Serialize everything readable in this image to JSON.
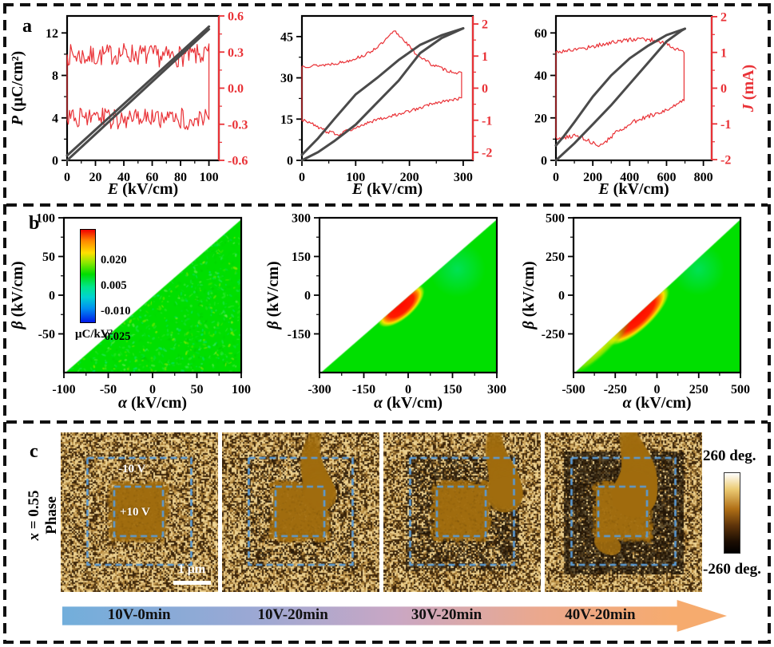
{
  "panels": {
    "a": {
      "label": "a"
    },
    "b": {
      "label": "b"
    },
    "c": {
      "label": "c"
    }
  },
  "colors": {
    "curve_p": "#4a4a4a",
    "curve_j": "#e93136",
    "axis": "#000000",
    "forc_green": "#00df00",
    "pfm_blue_dash": "#5b9bd5",
    "pfm_base": "#b4873c",
    "pfm_dark": "#3a2309",
    "pfm_light": "#eed392",
    "pfm_smooth": "#a06c0e",
    "pfm_ring": "#170e04"
  },
  "chart_data": [
    {
      "type": "line",
      "panel": "a",
      "index": 0,
      "xlabel_var": "E",
      "xlabel_unit": " (kV/cm)",
      "ylabel_left_var": "P",
      "ylabel_left_unit": " (μC/cm²)",
      "ylabel_right_var": "",
      "ylabel_right_unit": "",
      "xlim": [
        0,
        107
      ],
      "xticks": [
        [
          0,
          "0"
        ],
        [
          20,
          "20"
        ],
        [
          40,
          "40"
        ],
        [
          60,
          "60"
        ],
        [
          80,
          "80"
        ],
        [
          100,
          "100"
        ]
      ],
      "ylim_left": [
        0,
        13.6
      ],
      "yticks_left": [
        [
          0,
          "0"
        ],
        [
          4,
          "4"
        ],
        [
          8,
          "8"
        ],
        [
          12,
          "12"
        ]
      ],
      "ylim_right": [
        -0.6,
        0.6
      ],
      "yticks_right": [
        [
          0.6,
          "0.6"
        ],
        [
          0.3,
          "0.3"
        ],
        [
          0,
          "0.0"
        ],
        [
          -0.3,
          "-0.3"
        ],
        [
          -0.6,
          "-0.6"
        ]
      ],
      "p_branches": [
        [
          [
            0,
            0
          ],
          [
            100,
            12.35
          ]
        ],
        [
          [
            100,
            12.6
          ],
          [
            0,
            0.45
          ]
        ]
      ],
      "j_loop": [
        [
          0,
          0.28
        ],
        [
          15,
          0.26
        ],
        [
          40,
          0.29
        ],
        [
          70,
          0.26
        ],
        [
          100,
          0.28
        ],
        [
          100,
          -0.26
        ],
        [
          70,
          -0.25
        ],
        [
          40,
          -0.27
        ],
        [
          15,
          -0.24
        ],
        [
          0,
          -0.26
        ],
        [
          0,
          0.28
        ]
      ],
      "j_noise": 0.09,
      "seed": 7
    },
    {
      "type": "line",
      "panel": "a",
      "index": 1,
      "xlabel_var": "E",
      "xlabel_unit": " (kV/cm)",
      "ylabel_left_var": "",
      "ylabel_left_unit": "",
      "ylabel_right_var": "",
      "ylabel_right_unit": "",
      "xlim": [
        0,
        318
      ],
      "xticks": [
        [
          0,
          "0"
        ],
        [
          100,
          "100"
        ],
        [
          200,
          "200"
        ],
        [
          300,
          "300"
        ]
      ],
      "ylim_left": [
        0,
        52.5
      ],
      "yticks_left": [
        [
          0,
          "0"
        ],
        [
          15,
          "15"
        ],
        [
          30,
          "30"
        ],
        [
          45,
          "45"
        ]
      ],
      "ylim_right": [
        -2.25,
        2.25
      ],
      "yticks_right": [
        [
          2,
          "2"
        ],
        [
          1,
          "1"
        ],
        [
          0,
          "0"
        ],
        [
          -1,
          "-1"
        ],
        [
          -2,
          "-2"
        ]
      ],
      "p_branches": [
        [
          [
            0,
            0
          ],
          [
            30,
            3
          ],
          [
            60,
            7
          ],
          [
            100,
            13
          ],
          [
            140,
            21
          ],
          [
            180,
            29
          ],
          [
            220,
            39
          ],
          [
            260,
            44.5
          ],
          [
            300,
            48
          ]
        ],
        [
          [
            300,
            48
          ],
          [
            260,
            45.5
          ],
          [
            220,
            42
          ],
          [
            180,
            36.5
          ],
          [
            140,
            30
          ],
          [
            100,
            24
          ],
          [
            60,
            15
          ],
          [
            30,
            8
          ],
          [
            0,
            2
          ]
        ]
      ],
      "j_loop": [
        [
          0,
          0.68
        ],
        [
          40,
          0.72
        ],
        [
          80,
          0.82
        ],
        [
          120,
          1.05
        ],
        [
          150,
          1.4
        ],
        [
          172,
          1.78
        ],
        [
          190,
          1.5
        ],
        [
          210,
          1.1
        ],
        [
          240,
          0.75
        ],
        [
          270,
          0.55
        ],
        [
          297,
          0.45
        ],
        [
          297,
          -0.3
        ],
        [
          270,
          -0.4
        ],
        [
          240,
          -0.5
        ],
        [
          200,
          -0.72
        ],
        [
          160,
          -0.9
        ],
        [
          120,
          -1.08
        ],
        [
          90,
          -1.3
        ],
        [
          68,
          -1.44
        ],
        [
          45,
          -1.35
        ],
        [
          20,
          -1.12
        ],
        [
          0,
          -0.98
        ],
        [
          0,
          0.68
        ]
      ],
      "j_noise": 0.05,
      "seed": 13
    },
    {
      "type": "line",
      "panel": "a",
      "index": 2,
      "xlabel_var": "E",
      "xlabel_unit": " (kV/cm)",
      "ylabel_left_var": "",
      "ylabel_left_unit": "",
      "ylabel_right_var": "J",
      "ylabel_right_unit": " (mA)",
      "xlim": [
        0,
        845
      ],
      "xticks": [
        [
          0,
          "0"
        ],
        [
          200,
          "200"
        ],
        [
          400,
          "400"
        ],
        [
          600,
          "600"
        ],
        [
          800,
          "800"
        ]
      ],
      "ylim_left": [
        0,
        68
      ],
      "yticks_left": [
        [
          0,
          "0"
        ],
        [
          20,
          "20"
        ],
        [
          40,
          "40"
        ],
        [
          60,
          "60"
        ]
      ],
      "ylim_right": [
        -2.02,
        2.02
      ],
      "yticks_right": [
        [
          2,
          "2"
        ],
        [
          1,
          "1"
        ],
        [
          0,
          "0"
        ],
        [
          -1,
          "-1"
        ],
        [
          -2,
          "-2"
        ]
      ],
      "p_branches": [
        [
          [
            0,
            0
          ],
          [
            100,
            8
          ],
          [
            200,
            17
          ],
          [
            300,
            26
          ],
          [
            400,
            36
          ],
          [
            500,
            46
          ],
          [
            600,
            56
          ],
          [
            680,
            61
          ],
          [
            700,
            62
          ]
        ],
        [
          [
            700,
            62
          ],
          [
            600,
            59
          ],
          [
            500,
            54
          ],
          [
            400,
            48
          ],
          [
            300,
            40
          ],
          [
            200,
            30
          ],
          [
            100,
            18
          ],
          [
            40,
            11
          ],
          [
            0,
            7
          ]
        ]
      ],
      "j_loop": [
        [
          0,
          1.02
        ],
        [
          60,
          1.05
        ],
        [
          150,
          1.12
        ],
        [
          250,
          1.22
        ],
        [
          350,
          1.32
        ],
        [
          450,
          1.38
        ],
        [
          520,
          1.35
        ],
        [
          580,
          1.28
        ],
        [
          640,
          1.12
        ],
        [
          695,
          1.02
        ],
        [
          695,
          -0.35
        ],
        [
          640,
          -0.5
        ],
        [
          560,
          -0.68
        ],
        [
          480,
          -0.82
        ],
        [
          400,
          -1.0
        ],
        [
          330,
          -1.22
        ],
        [
          270,
          -1.5
        ],
        [
          230,
          -1.58
        ],
        [
          190,
          -1.52
        ],
        [
          150,
          -1.4
        ],
        [
          100,
          -1.32
        ],
        [
          60,
          -1.38
        ],
        [
          20,
          -1.42
        ],
        [
          0,
          -1.35
        ],
        [
          0,
          1.02
        ]
      ],
      "j_noise": 0.06,
      "seed": 17
    },
    {
      "type": "heatmap",
      "panel": "b",
      "index": 0,
      "xlabel_var": "α",
      "xlabel_unit": " (kV/cm)",
      "ylabel_var": "β",
      "ylabel_unit": " (kV/cm)",
      "xlim": [
        -100,
        100
      ],
      "xticks": [
        [
          -100,
          "-100"
        ],
        [
          -50,
          "-50"
        ],
        [
          0,
          "0"
        ],
        [
          50,
          "50"
        ],
        [
          100,
          "100"
        ]
      ],
      "ylim": [
        -100,
        100
      ],
      "yticks": [
        [
          100,
          "100"
        ],
        [
          50,
          "50"
        ],
        [
          0,
          "0"
        ],
        [
          -50,
          "-50"
        ]
      ],
      "speckle": true,
      "hotspot": null,
      "tail": false,
      "cyan_spot": null,
      "colorbar": {
        "ticks": [
          "0.020",
          "0.005",
          "-0.010",
          "-0.025"
        ],
        "unit": "μC/kV²"
      },
      "seed": 101
    },
    {
      "type": "heatmap",
      "panel": "b",
      "index": 1,
      "xlabel_var": "α",
      "xlabel_unit": " (kV/cm)",
      "ylabel_var": "β",
      "ylabel_unit": " (kV/cm)",
      "xlim": [
        -300,
        300
      ],
      "xticks": [
        [
          -300,
          "-300"
        ],
        [
          -150,
          "-150"
        ],
        [
          0,
          "0"
        ],
        [
          150,
          "150"
        ],
        [
          300,
          "300"
        ]
      ],
      "ylim": [
        -300,
        300
      ],
      "yticks": [
        [
          300,
          "300"
        ],
        [
          150,
          "150"
        ],
        [
          0,
          "0"
        ],
        [
          -150,
          "-150"
        ]
      ],
      "speckle": false,
      "hotspot": {
        "cx": 0.46,
        "cy": 0.57,
        "len": 0.17,
        "wid": 0.085
      },
      "tail": false,
      "cyan_spot": {
        "x": 0.78,
        "y": 0.33,
        "r": 0.16
      },
      "seed": 103
    },
    {
      "type": "heatmap",
      "panel": "b",
      "index": 2,
      "xlabel_var": "α",
      "xlabel_unit": " (kV/cm)",
      "ylabel_var": "β",
      "ylabel_unit": " (kV/cm)",
      "xlim": [
        -500,
        500
      ],
      "xticks": [
        [
          -500,
          "-500"
        ],
        [
          -250,
          "-250"
        ],
        [
          0,
          "0"
        ],
        [
          250,
          "250"
        ],
        [
          500,
          "500"
        ]
      ],
      "ylim": [
        -500,
        500
      ],
      "yticks": [
        [
          500,
          "500"
        ],
        [
          250,
          "250"
        ],
        [
          0,
          "0"
        ],
        [
          -250,
          "-250"
        ]
      ],
      "speckle": false,
      "hotspot": {
        "cx": 0.38,
        "cy": 0.63,
        "len": 0.26,
        "wid": 0.1
      },
      "tail": true,
      "cyan_spot": {
        "x": 0.75,
        "y": 0.33,
        "r": 0.16
      },
      "seed": 107
    }
  ],
  "panel_c": {
    "row_label_var": "x",
    "row_label_rest": " = 0.55",
    "row_label_line2": "Phase",
    "images": [
      {
        "ring": 0,
        "streak": null,
        "labels": {
          "outer": "-10 V",
          "inner": "+10 V"
        },
        "scalebar": "1 μm",
        "seed": 21
      },
      {
        "ring": 0.16,
        "streak": {
          "x": 0.6,
          "w": 0.085,
          "alpha": 0.8
        },
        "seed": 22
      },
      {
        "ring": 0.5,
        "streak": {
          "x": 0.74,
          "w": 0.095,
          "alpha": 0.9
        },
        "seed": 23
      },
      {
        "ring": 0.92,
        "streak": {
          "x": 0.56,
          "w": 0.12,
          "alpha": 1
        },
        "blob": [
          0.4,
          0.7,
          0.09
        ],
        "seed": 24
      }
    ],
    "colorbar": {
      "top": "260 deg.",
      "bottom": "-260 deg."
    },
    "arrow_labels": [
      "10V-0min",
      "10V-20min",
      "30V-20min",
      "40V-20min"
    ]
  }
}
